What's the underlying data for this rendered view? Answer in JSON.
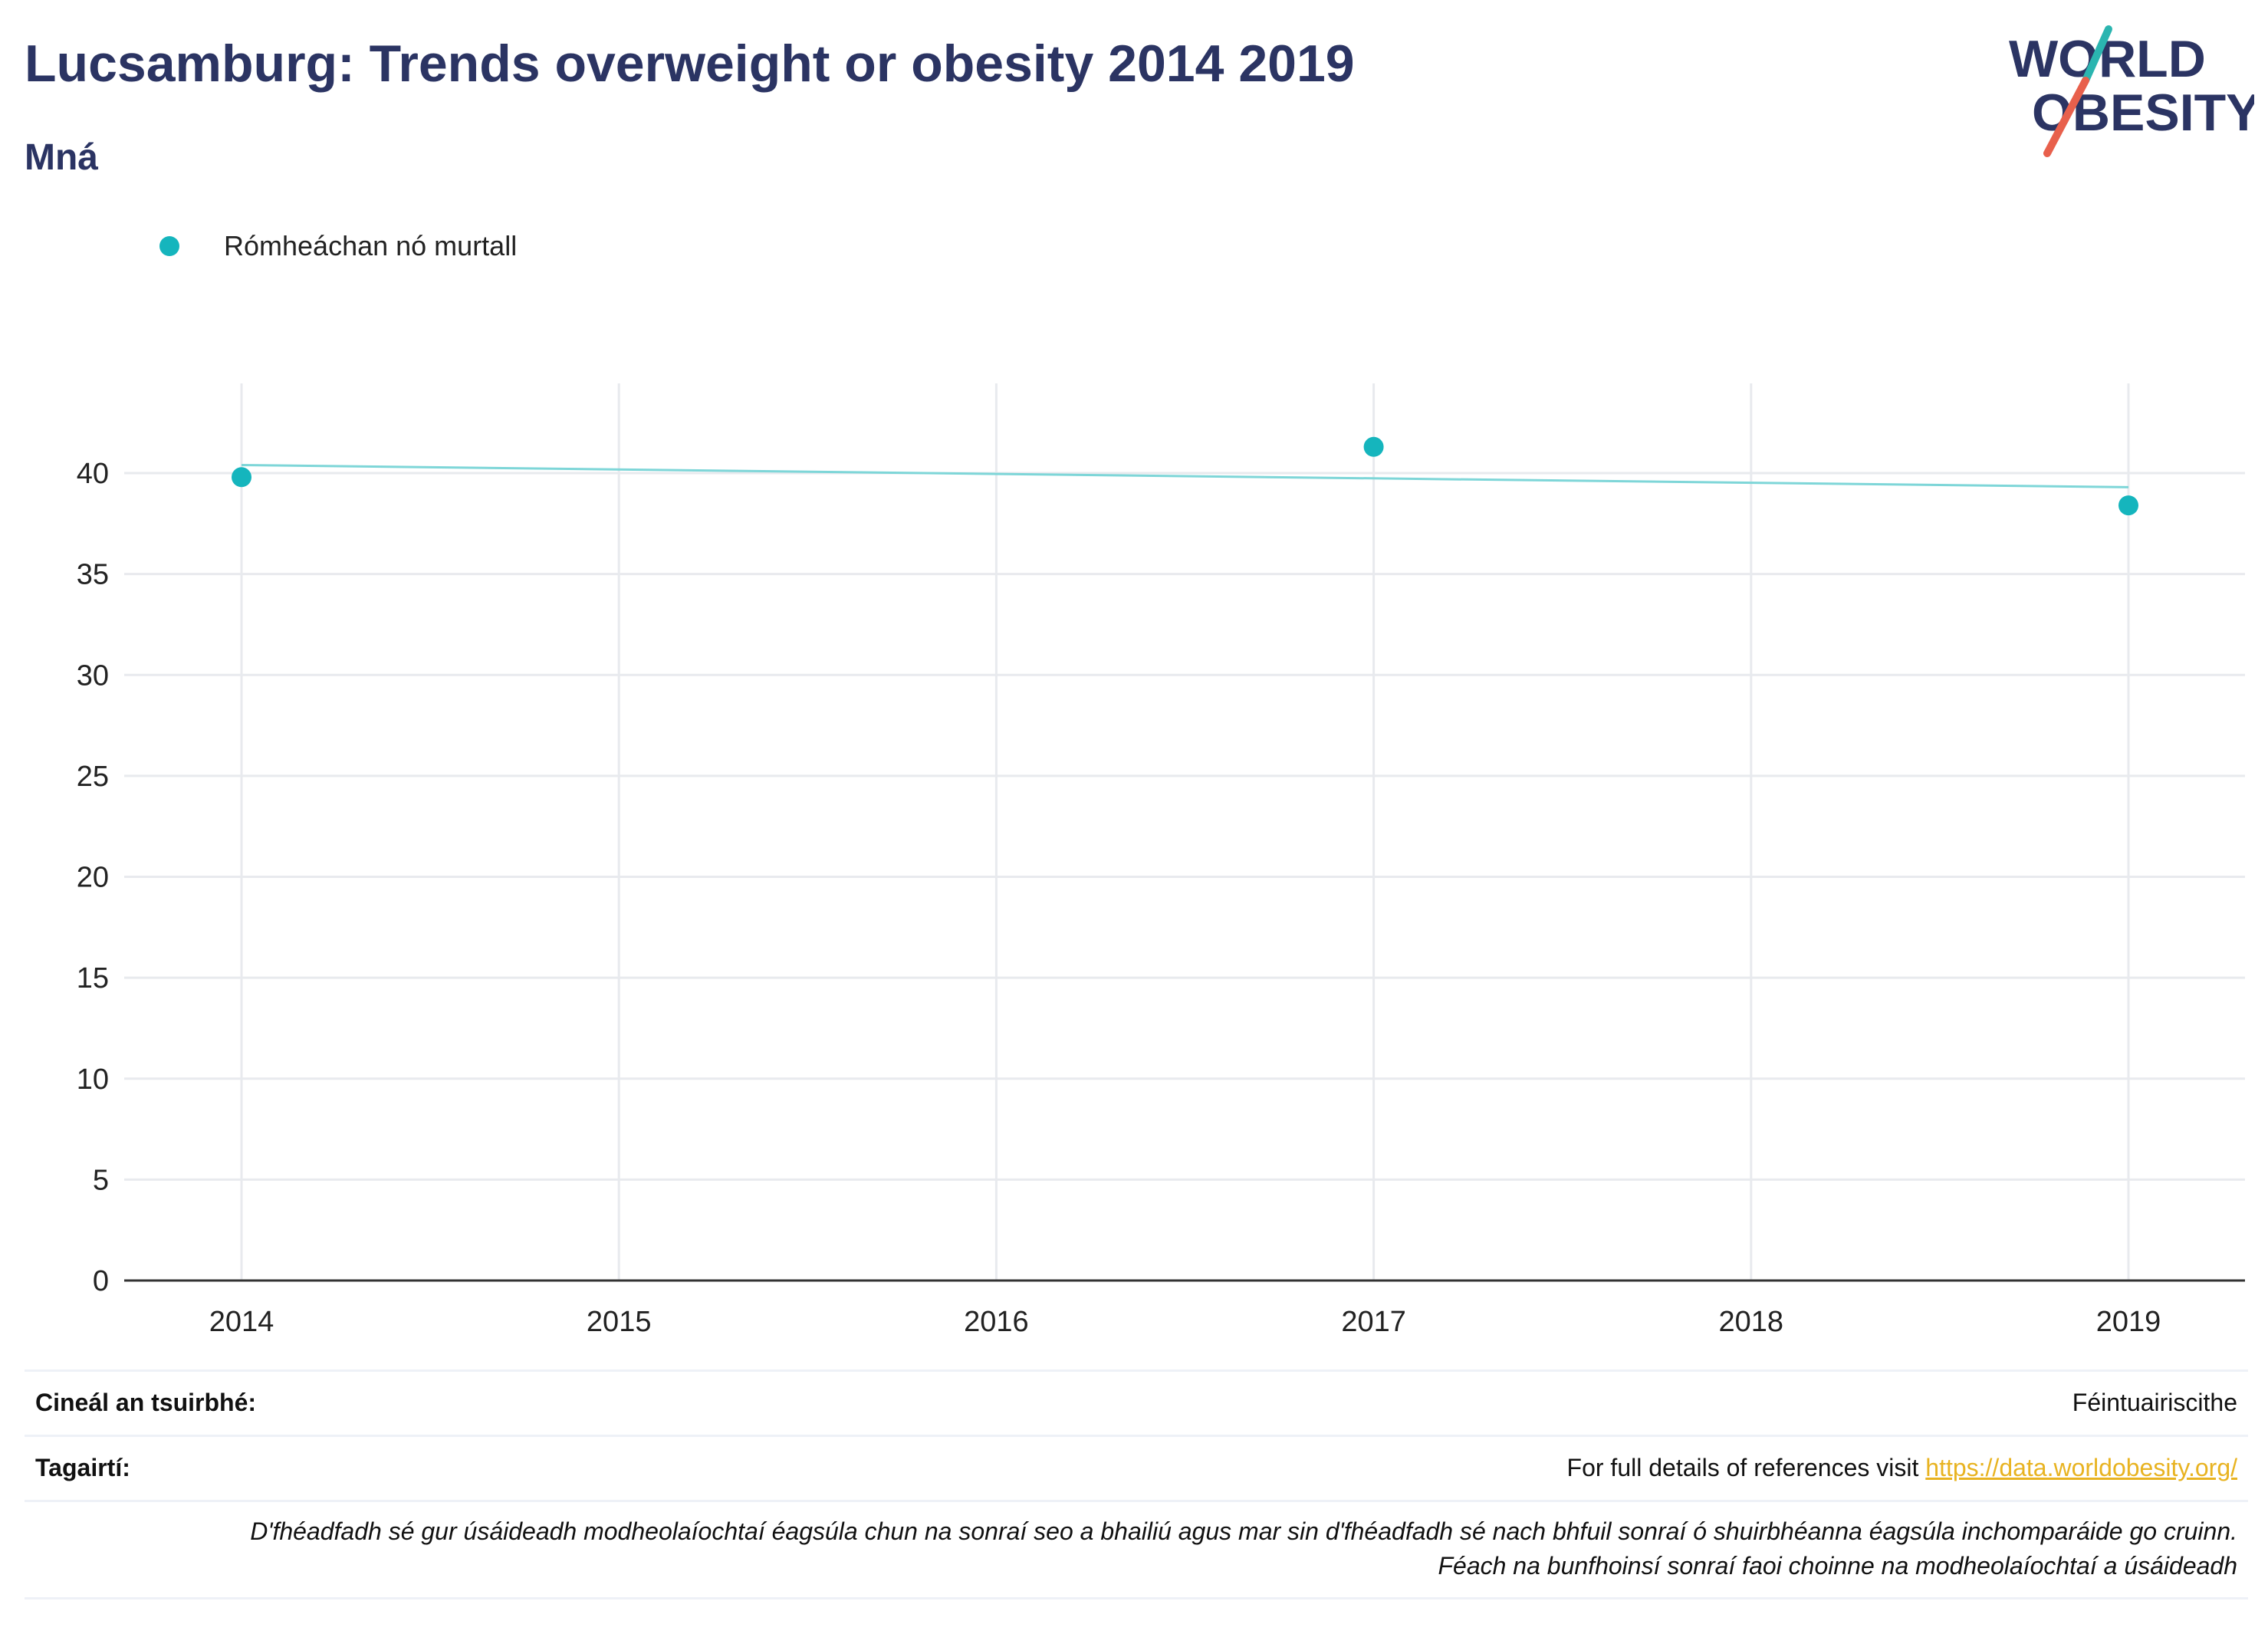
{
  "header": {
    "title": "Lucsamburg: Trends overweight or obesity 2014 2019",
    "subtitle": "Mná"
  },
  "logo": {
    "line1": "WORLD",
    "line2": "OBESITY",
    "slash_color_top": "#2bb5b0",
    "slash_color_bottom": "#e8604c"
  },
  "legend": {
    "label": "Rómheáchan nó murtall"
  },
  "colors": {
    "point": "#15b5bd",
    "trendline": "#7ed6d8",
    "title": "#2b3463",
    "link": "#e8b321"
  },
  "chart_data": {
    "type": "scatter",
    "series": [
      {
        "name": "Rómheáchan nó murtall",
        "points": [
          {
            "x": 2014,
            "y": 39.8
          },
          {
            "x": 2017,
            "y": 41.3
          },
          {
            "x": 2019,
            "y": 38.4
          }
        ],
        "trendline": [
          {
            "x": 2014,
            "y": 40.4
          },
          {
            "x": 2019,
            "y": 39.3
          }
        ]
      }
    ],
    "x_ticks": [
      2014,
      2015,
      2016,
      2017,
      2018,
      2019
    ],
    "y_ticks": [
      0,
      5,
      10,
      15,
      20,
      25,
      30,
      35,
      40
    ],
    "xlim": [
      2013.7,
      2019.3
    ],
    "ylim": [
      0,
      44
    ],
    "grid": true,
    "legend_position": "top-left"
  },
  "info": {
    "survey_type_label": "Cineál an tsuirbhé:",
    "survey_type_value": "Féintuairiscithe",
    "references_label": "Tagairtí:",
    "references_text": "For full details of references visit ",
    "references_link": "https://data.worldobesity.org/",
    "note_line1": "D'fhéadfadh sé gur úsáideadh modheolaíochtaí éagsúla chun na sonraí seo a bhailiú agus mar sin d'fhéadfadh sé nach bhfuil sonraí ó shuirbhéanna éagsúla inchomparáide go cruinn.",
    "note_line2": "Féach na bunfhoinsí sonraí faoi choinne na modheolaíochtaí a úsáideadh"
  }
}
